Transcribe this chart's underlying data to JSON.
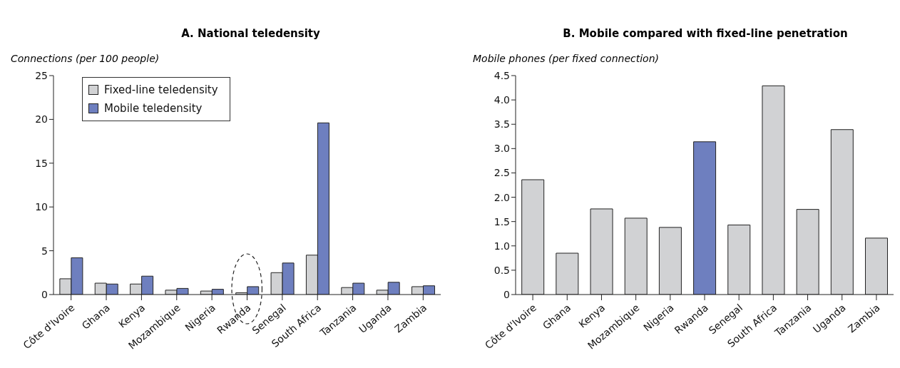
{
  "chart_data": [
    {
      "type": "bar",
      "title": "A. National teledensity",
      "ylabel": "Connections (per 100 people)",
      "categories": [
        "Côte d'Ivoire",
        "Ghana",
        "Kenya",
        "Mozambique",
        "Nigeria",
        "Rwanda",
        "Senegal",
        "South Africa",
        "Tanzania",
        "Uganda",
        "Zambia"
      ],
      "series": [
        {
          "name": "Fixed-line teledensity",
          "color": "#d1d2d4",
          "values": [
            1.8,
            1.3,
            1.2,
            0.5,
            0.4,
            0.2,
            2.5,
            4.5,
            0.8,
            0.5,
            0.9
          ]
        },
        {
          "name": "Mobile teledensity",
          "color": "#6e7fbf",
          "values": [
            4.2,
            1.2,
            2.1,
            0.7,
            0.6,
            0.9,
            3.6,
            19.6,
            1.3,
            1.4,
            1.0
          ]
        }
      ],
      "ylim": [
        0,
        25
      ],
      "yticks": [
        0,
        5,
        10,
        15,
        20,
        25
      ],
      "legend": "top left",
      "grid": false
    },
    {
      "type": "bar",
      "title": "B. Mobile compared with fixed-line penetration",
      "ylabel": "Mobile phones (per fixed connection)",
      "categories": [
        "Côte d'Ivoire",
        "Ghana",
        "Kenya",
        "Mozambique",
        "Nigeria",
        "Rwanda",
        "Senegal",
        "South Africa",
        "Tanzania",
        "Uganda",
        "Zambia"
      ],
      "values": [
        2.36,
        0.85,
        1.76,
        1.57,
        1.38,
        3.14,
        1.43,
        4.29,
        1.75,
        3.39,
        1.16
      ],
      "colors": [
        "#d1d2d4",
        "#d1d2d4",
        "#d1d2d4",
        "#d1d2d4",
        "#d1d2d4",
        "#6e7fbf",
        "#d1d2d4",
        "#d1d2d4",
        "#d1d2d4",
        "#d1d2d4",
        "#d1d2d4"
      ],
      "ylim": [
        0,
        4.5
      ],
      "yticks": [
        0,
        {
          "value": 0.5,
          "label": "0.5"
        },
        {
          "value": 1,
          "label": "1.0"
        },
        {
          "value": 1.5,
          "label": "1.5"
        },
        {
          "value": 2,
          "label": "2.0"
        },
        {
          "value": 2.5,
          "label": "2.5"
        },
        {
          "value": 3,
          "label": "3.0"
        },
        {
          "value": 3.5,
          "label": "3.5"
        },
        {
          "value": 4,
          "label": "4.0"
        },
        {
          "value": 4.5,
          "label": "4.5"
        }
      ],
      "grid": false
    }
  ]
}
